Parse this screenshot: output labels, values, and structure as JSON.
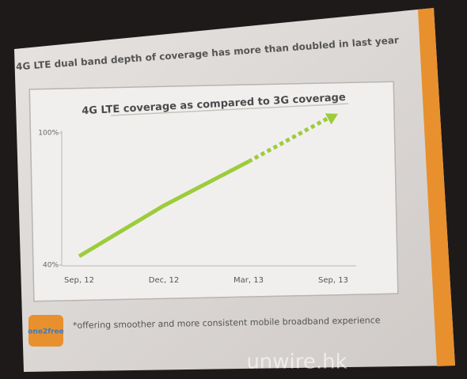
{
  "header": {
    "title": "4G LTE dual band depth of coverage has more than doubled in last year"
  },
  "chart_data": {
    "type": "line",
    "title": "4G LTE coverage as compared to 3G coverage",
    "categories": [
      "Sep, 12",
      "Dec, 12",
      "Mar, 13",
      "Sep, 13"
    ],
    "ylim": [
      40,
      100
    ],
    "yticks": [
      {
        "value": 40,
        "label": "40%"
      },
      {
        "value": 100,
        "label": "100%"
      }
    ],
    "series": [
      {
        "color": "#9ccc3c",
        "style": "solid",
        "values": [
          44,
          67,
          87,
          null
        ]
      },
      {
        "color": "#9ccc3c",
        "style": "dotted",
        "values": [
          null,
          null,
          87,
          108
        ]
      }
    ]
  },
  "footer": {
    "logo": "one2free",
    "note": "*offering smoother and more consistent mobile broadband experience"
  },
  "watermark": "unwire.hk"
}
